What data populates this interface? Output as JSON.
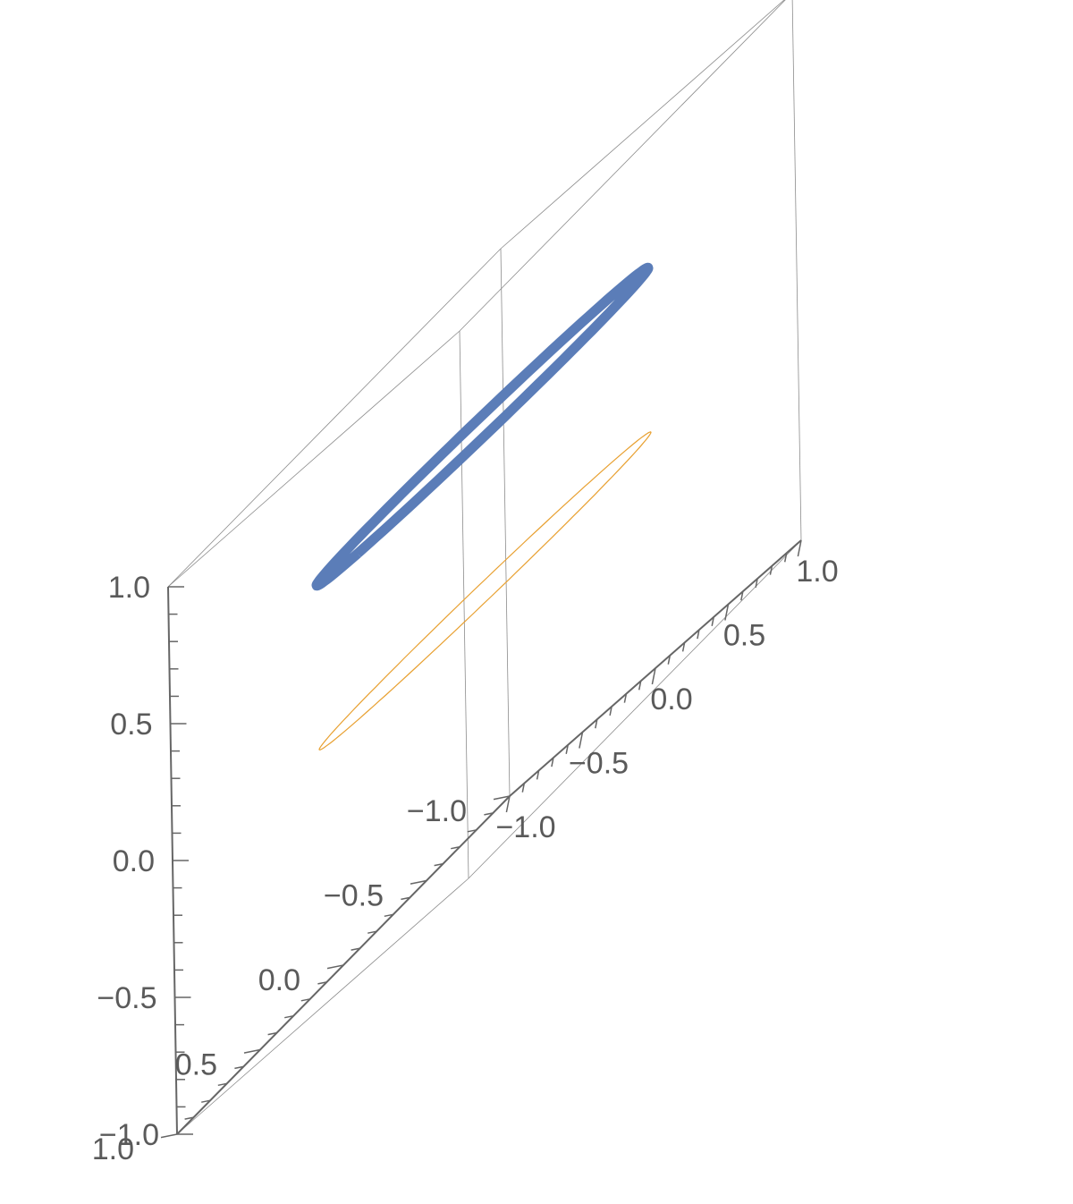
{
  "chart_data": {
    "type": "line",
    "dimensions": 3,
    "title": "",
    "box": true,
    "grid": false,
    "axes": {
      "x": {
        "range": [
          -1.0,
          1.0
        ],
        "ticks": [
          "−1.0",
          "−0.5",
          "0.0",
          "0.5",
          "1.0"
        ]
      },
      "y": {
        "range": [
          -1.0,
          1.0
        ],
        "ticks": [
          "−1.0",
          "−0.5",
          "0.0",
          "0.5",
          "1.0"
        ]
      },
      "z": {
        "range": [
          -1.0,
          1.0
        ],
        "ticks": [
          "−1.0",
          "−0.5",
          "0.0",
          "0.5",
          "1.0"
        ]
      }
    },
    "series": [
      {
        "curve": "circle",
        "center": [
          0,
          0,
          0.5
        ],
        "radius": 0.75,
        "color": "#5b7db8",
        "style": "thick"
      },
      {
        "curve": "circle",
        "center": [
          0,
          0,
          -0.1
        ],
        "radius": 0.75,
        "color": "#e8a030",
        "style": "thin"
      }
    ]
  }
}
